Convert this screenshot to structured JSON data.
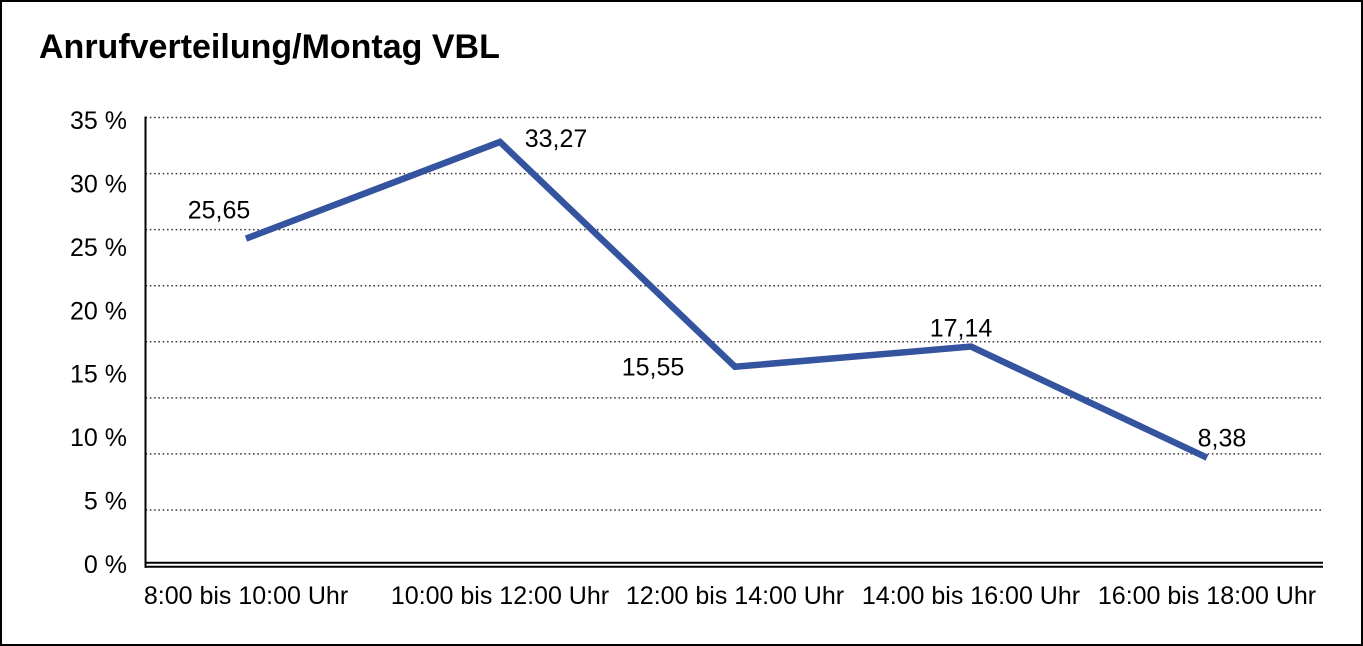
{
  "title": "Anrufverteilung/Montag VBL",
  "chart_data": {
    "type": "line",
    "title": "Anrufverteilung/Montag VBL",
    "categories": [
      "8:00 bis 10:00 Uhr",
      "10:00 bis 12:00 Uhr",
      "12:00 bis 14:00 Uhr",
      "14:00 bis 16:00 Uhr",
      "16:00 bis 18:00 Uhr"
    ],
    "values": [
      25.65,
      33.27,
      15.55,
      17.14,
      8.38
    ],
    "point_labels": [
      "25,65",
      "33,27",
      "15,55",
      "17,14",
      "8,38"
    ],
    "y_ticks": [
      "35 %",
      "30 %",
      "25 %",
      "20 %",
      "15 %",
      "10 %",
      "5 %",
      "0 %"
    ],
    "ylim": [
      0,
      35
    ],
    "xlabel": "",
    "ylabel": "",
    "legend": "none",
    "grid": "dotted-horizontal",
    "line_color": "#35549f",
    "axis_color": "#000000",
    "background_color": "#ffffff"
  }
}
